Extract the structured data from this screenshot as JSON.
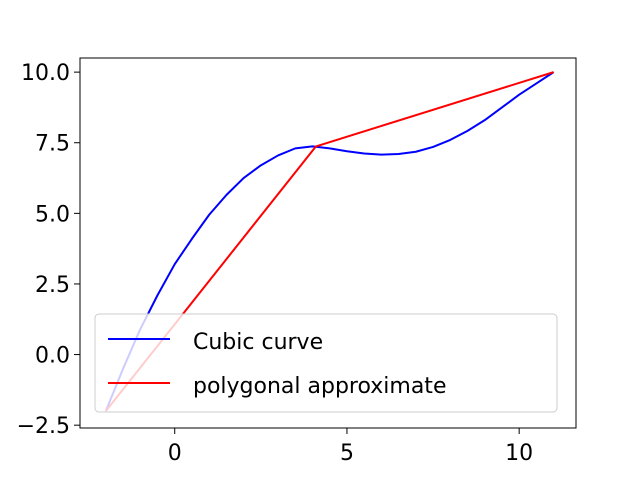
{
  "chart_data": {
    "type": "line",
    "title": "",
    "xlabel": "",
    "ylabel": "",
    "xlim": [
      -2.75,
      11.65
    ],
    "ylim": [
      -2.6,
      10.5
    ],
    "xticks": [
      0,
      5,
      10
    ],
    "xtick_labels": [
      "0",
      "5",
      "10"
    ],
    "yticks": [
      -2.5,
      0.0,
      2.5,
      5.0,
      7.5,
      10.0
    ],
    "ytick_labels": [
      "−2.5",
      "0.0",
      "2.5",
      "5.0",
      "7.5",
      "10.0"
    ],
    "grid": false,
    "legend": {
      "placement": "lower-right"
    },
    "series": [
      {
        "name": "Cubic curve",
        "color": "#0000ff",
        "x": [
          -2.0,
          -1.5,
          -1.0,
          -0.5,
          0.0,
          0.5,
          1.0,
          1.5,
          2.0,
          2.5,
          3.0,
          3.5,
          4.0,
          4.5,
          5.0,
          5.5,
          6.0,
          6.5,
          7.0,
          7.5,
          8.0,
          8.5,
          9.0,
          9.5,
          10.0,
          10.5,
          11.0
        ],
        "y": [
          -2.0,
          -0.5,
          0.9,
          2.1,
          3.2,
          4.1,
          4.95,
          5.65,
          6.25,
          6.7,
          7.05,
          7.3,
          7.37,
          7.3,
          7.2,
          7.12,
          7.08,
          7.1,
          7.18,
          7.35,
          7.6,
          7.92,
          8.3,
          8.75,
          9.2,
          9.6,
          10.0
        ]
      },
      {
        "name": "polygonal approximate",
        "color": "#ff0000",
        "x": [
          -2.0,
          4.1,
          11.0
        ],
        "y": [
          -2.0,
          7.37,
          10.0
        ]
      }
    ]
  }
}
